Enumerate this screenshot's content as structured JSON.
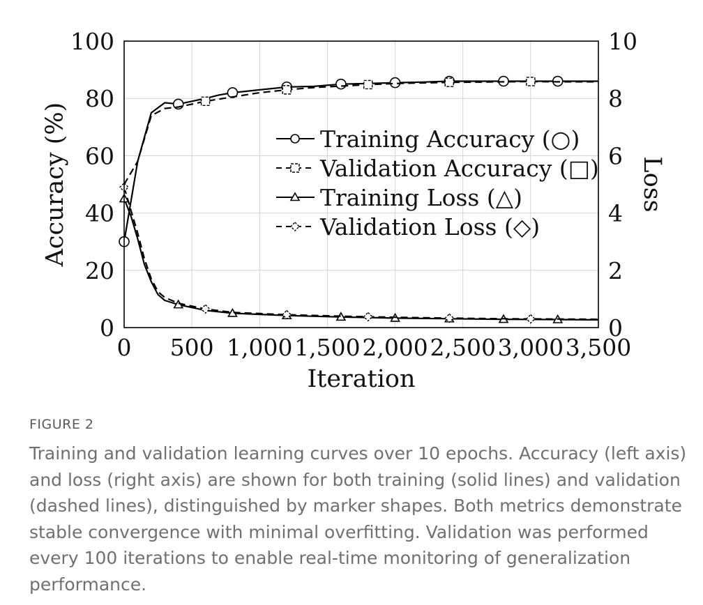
{
  "figure": {
    "label": "FIGURE 2",
    "caption": "Training and validation learning curves over 10 epochs. Accuracy (left axis) and loss (right axis) are shown for both training (solid lines) and validation (dashed lines), distinguished by marker shapes. Both metrics demonstrate stable convergence with minimal overfitting. Validation was performed every 100 iterations to enable real-time monitoring of generalization performance."
  },
  "chart_data": {
    "type": "line",
    "xlabel": "Iteration",
    "ylabel_left": "Accuracy (%)",
    "ylabel_right": "Loss",
    "xlim": [
      0,
      3500
    ],
    "ylim_left": [
      0,
      100
    ],
    "ylim_right": [
      0,
      10
    ],
    "xticks": [
      "0",
      "500",
      "1,000",
      "1,500",
      "2,000",
      "2,500",
      "3,000",
      "3,500"
    ],
    "yticks_left": [
      "0",
      "20",
      "40",
      "60",
      "80",
      "100"
    ],
    "yticks_right": [
      "0",
      "2",
      "4",
      "6",
      "8",
      "10"
    ],
    "grid": true,
    "legend_position": "center-right",
    "series": [
      {
        "name": "Training Accuracy (○)",
        "axis": "left",
        "style": "solid",
        "marker": "circle",
        "color": "#000000",
        "x": [
          0,
          100,
          200,
          300,
          400,
          500,
          600,
          700,
          800,
          1000,
          1200,
          1400,
          1600,
          1800,
          2000,
          2200,
          2400,
          2600,
          2800,
          3000,
          3200,
          3500
        ],
        "y": [
          30,
          58,
          75,
          78.5,
          78,
          79,
          80,
          81.2,
          82,
          83,
          84,
          84.2,
          85,
          85.2,
          85.5,
          85.7,
          86,
          86,
          86,
          86,
          86,
          86
        ],
        "markers_x": [
          0,
          400,
          800,
          1200,
          1600,
          2000,
          2400,
          2800,
          3200
        ]
      },
      {
        "name": "Validation Accuracy (□)",
        "axis": "left",
        "style": "dashed",
        "marker": "square",
        "color": "#000000",
        "x": [
          0,
          100,
          200,
          300,
          400,
          500,
          600,
          800,
          1000,
          1200,
          1400,
          1600,
          1800,
          2000,
          2200,
          2400,
          2600,
          2800,
          3000,
          3200,
          3500
        ],
        "y": [
          50,
          58,
          74,
          76.5,
          77,
          78,
          79,
          80.5,
          82,
          83,
          83.8,
          84.3,
          84.8,
          85.2,
          85.4,
          85.6,
          85.7,
          85.8,
          85.9,
          85.8,
          85.8
        ],
        "markers_x": [
          600,
          1200,
          1800,
          2400,
          3000
        ]
      },
      {
        "name": "Training Loss (△)",
        "axis": "right",
        "style": "solid",
        "marker": "triangle",
        "color": "#000000",
        "x": [
          0,
          50,
          100,
          150,
          200,
          250,
          300,
          400,
          600,
          800,
          1200,
          1600,
          2000,
          2400,
          2800,
          3200,
          3500
        ],
        "y": [
          4.5,
          3.9,
          3.1,
          2.2,
          1.6,
          1.15,
          0.95,
          0.8,
          0.6,
          0.5,
          0.42,
          0.37,
          0.33,
          0.31,
          0.29,
          0.28,
          0.27
        ],
        "markers_x": [
          0,
          400,
          800,
          1200,
          1600,
          2000,
          2400,
          2800,
          3200
        ]
      },
      {
        "name": "Validation Loss (◇)",
        "axis": "right",
        "style": "dashed",
        "marker": "diamond",
        "color": "#000000",
        "x": [
          0,
          50,
          100,
          150,
          200,
          250,
          300,
          400,
          600,
          800,
          1200,
          1600,
          2000,
          2400,
          2800,
          3200,
          3500
        ],
        "y": [
          4.9,
          4.1,
          3.3,
          2.4,
          1.7,
          1.25,
          1.05,
          0.85,
          0.65,
          0.53,
          0.45,
          0.4,
          0.36,
          0.33,
          0.31,
          0.3,
          0.29
        ],
        "markers_x": [
          0,
          600,
          1200,
          1800,
          2400,
          3000
        ]
      }
    ]
  }
}
